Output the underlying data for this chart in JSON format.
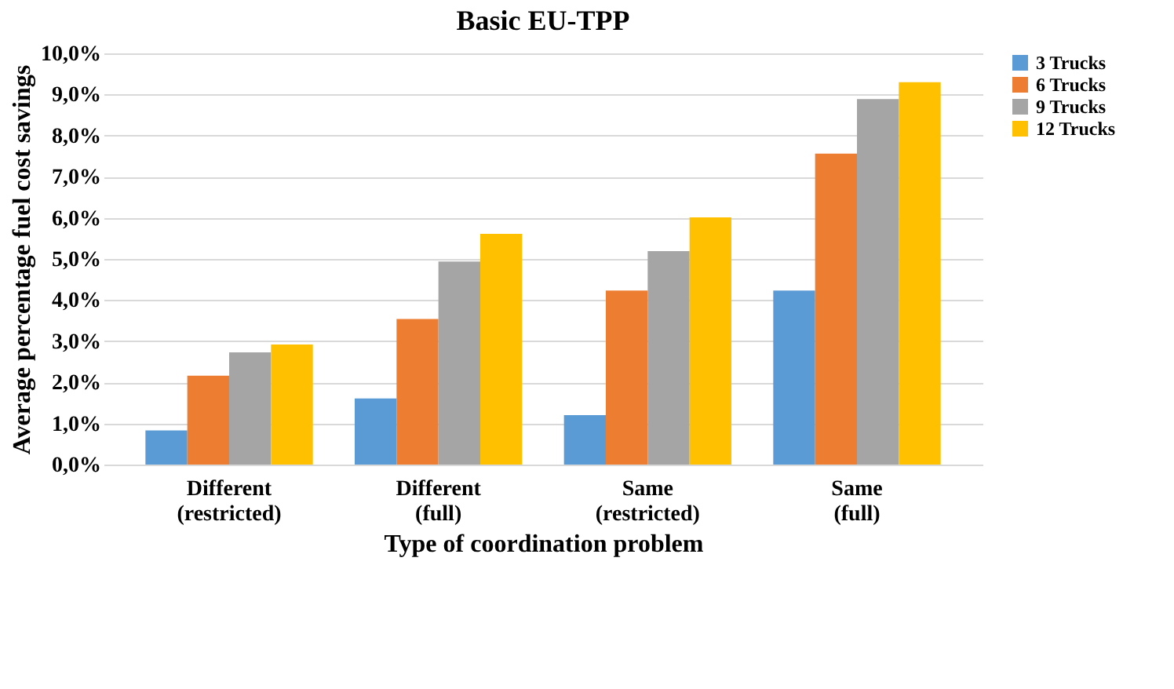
{
  "chart_data": {
    "type": "bar",
    "title": "Basic EU-TPP",
    "xlabel": "Type of coordination problem",
    "ylabel": "Average percentage fuel cost savings",
    "categories": [
      "Different\n(restricted)",
      "Different\n(full)",
      "Same\n(restricted)",
      "Same\n(full)"
    ],
    "series": [
      {
        "name": "3 Trucks",
        "color": "#5b9bd5",
        "values": [
          0.83,
          1.61,
          1.2,
          4.23
        ]
      },
      {
        "name": "6 Trucks",
        "color": "#ed7d31",
        "values": [
          2.16,
          3.54,
          4.23,
          7.56
        ]
      },
      {
        "name": "9 Trucks",
        "color": "#a5a5a5",
        "values": [
          2.73,
          4.94,
          5.19,
          8.89
        ]
      },
      {
        "name": "12 Trucks",
        "color": "#ffc000",
        "values": [
          2.92,
          5.61,
          6.01,
          9.3
        ]
      }
    ],
    "ylim": [
      0,
      10
    ],
    "yticks": [
      {
        "value": 0,
        "label": "0,0%"
      },
      {
        "value": 1,
        "label": "1,0%"
      },
      {
        "value": 2,
        "label": "2,0%"
      },
      {
        "value": 3,
        "label": "3,0%"
      },
      {
        "value": 4,
        "label": "4,0%"
      },
      {
        "value": 5,
        "label": "5,0%"
      },
      {
        "value": 6,
        "label": "6,0%"
      },
      {
        "value": 7,
        "label": "7,0%"
      },
      {
        "value": 8,
        "label": "8,0%"
      },
      {
        "value": 9,
        "label": "9,0%"
      },
      {
        "value": 10,
        "label": "10,0%"
      }
    ],
    "grid": "y",
    "legend": "right"
  }
}
